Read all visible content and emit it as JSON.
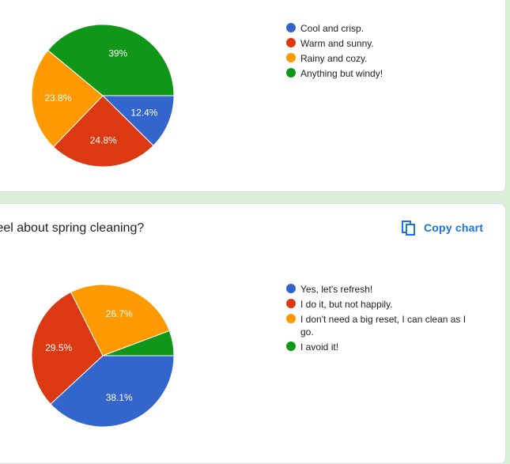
{
  "charts": [
    {
      "chart_data": {
        "type": "pie",
        "title": "",
        "categories": [
          "Cool and crisp.",
          "Warm and sunny.",
          "Rainy and cozy.",
          "Anything but windy!"
        ],
        "values": [
          12.4,
          24.8,
          23.8,
          39
        ],
        "labels": [
          "12.4%",
          "24.8%",
          "23.8%",
          "39%"
        ],
        "colors": [
          "#3366cc",
          "#dc3912",
          "#ff9900",
          "#109618"
        ],
        "start": "0° (3 o'clock)",
        "direction": "clockwise",
        "legend": "right"
      }
    },
    {
      "question": "feel about spring cleaning?",
      "copy_label": "Copy chart",
      "chart_data": {
        "type": "pie",
        "title": "",
        "categories": [
          "Yes, let's refresh!",
          "I do it, but not happily.",
          "I don't need a big reset, I can clean as I go.",
          "I avoid it!"
        ],
        "values": [
          38.1,
          29.5,
          26.7,
          5.7
        ],
        "labels": [
          "38.1%",
          "29.5%",
          "26.7%",
          ""
        ],
        "colors": [
          "#3366cc",
          "#dc3912",
          "#ff9900",
          "#109618"
        ],
        "start": "0° (3 o'clock)",
        "direction": "clockwise",
        "legend": "right"
      }
    }
  ]
}
